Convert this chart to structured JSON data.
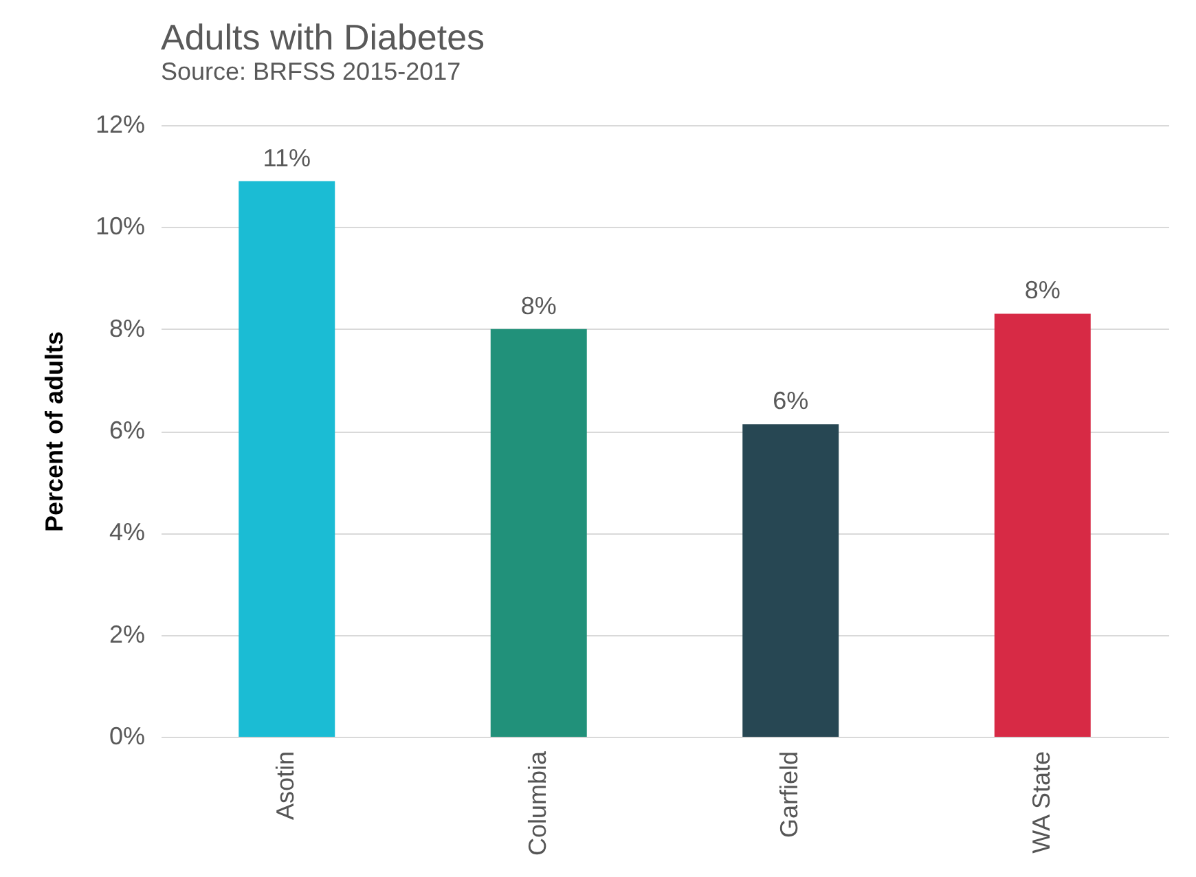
{
  "chart_data": {
    "type": "bar",
    "title": "Adults with Diabetes",
    "subtitle": "Source: BRFSS 2015-2017",
    "ylabel": "Percent of adults",
    "categories": [
      "Asotin",
      "Columbia",
      "Garfield",
      "WA State"
    ],
    "values": [
      10.9,
      8.0,
      6.13,
      8.3
    ],
    "colors": [
      "#1bbcd4",
      "#21917a",
      "#274753",
      "#d72a45"
    ],
    "value_labels": [
      "11%",
      "8%",
      "6%",
      "8%"
    ],
    "ylim": [
      0,
      12
    ],
    "yticks": [
      {
        "value": 0,
        "label": "0%"
      },
      {
        "value": 2,
        "label": "2%"
      },
      {
        "value": 4,
        "label": "4%"
      },
      {
        "value": 6,
        "label": "6%"
      },
      {
        "value": 8,
        "label": "8%"
      },
      {
        "value": 10,
        "label": "10%"
      },
      {
        "value": 12,
        "label": "12%"
      }
    ],
    "grid": "y"
  }
}
